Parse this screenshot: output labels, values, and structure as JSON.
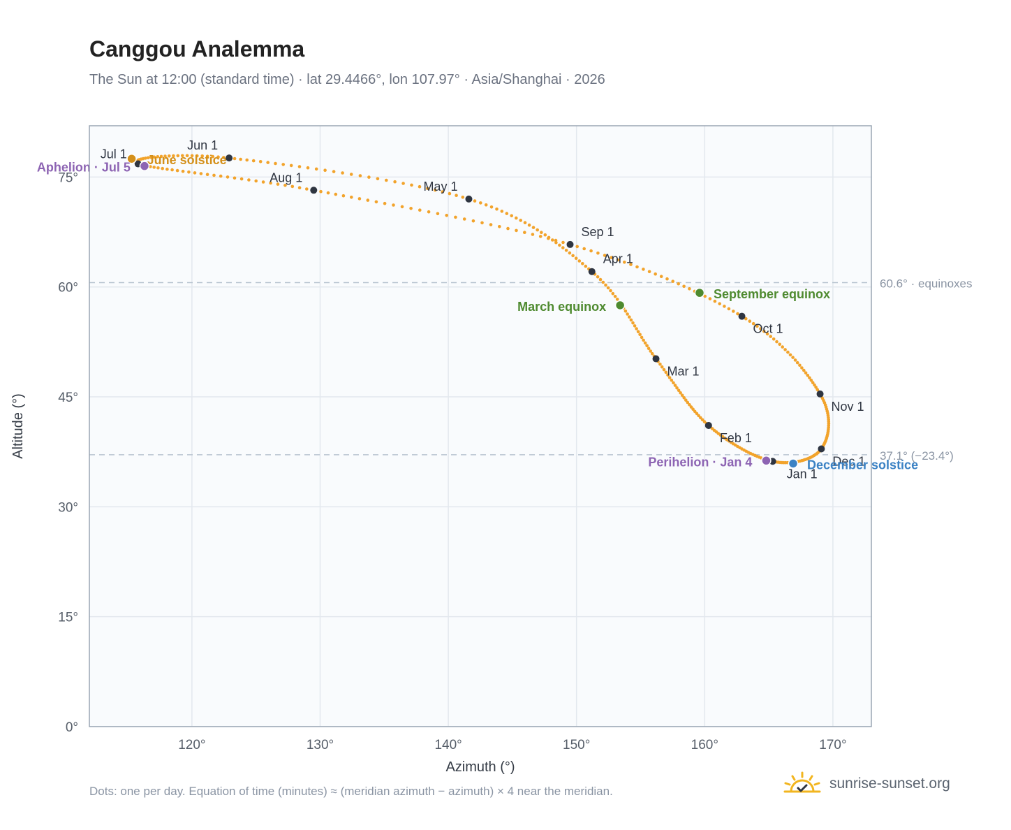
{
  "header": {
    "title": "Canggou Analemma",
    "subtitle": "The Sun at 12:00 (standard time) · lat 29.4466°, lon 107.97° · Asia/Shanghai · 2026"
  },
  "footer": {
    "note": "Dots: one per day. Equation of time (minutes) ≈ (meridian azimuth − azimuth) × 4 near the meridian.",
    "brand": "sunrise-sunset.org"
  },
  "colors": {
    "curve": "#f2a32b",
    "month_dot": "#2f3541",
    "solstice_june": "#d4901a",
    "solstice_december": "#3b82c4",
    "equinox": "#4e8a2f",
    "apsis": "#8d64b3",
    "plot_bg": "#f9fbfd",
    "grid": "#e3e8ee",
    "reference_line": "#b8c4d0"
  },
  "chart_data": {
    "type": "scatter",
    "xlabel": "Azimuth (°)",
    "ylabel": "Altitude (°)",
    "xlim": [
      112,
      173
    ],
    "ylim": [
      0,
      82
    ],
    "x_ticks": [
      120,
      130,
      140,
      150,
      160,
      170
    ],
    "x_tick_labels": [
      "120°",
      "130°",
      "140°",
      "150°",
      "160°",
      "170°"
    ],
    "y_ticks": [
      0,
      15,
      30,
      45,
      60,
      75
    ],
    "y_tick_labels": [
      "0°",
      "15°",
      "30°",
      "45°",
      "60°",
      "75°"
    ],
    "grid": true,
    "reference_lines": [
      {
        "y": 60.6,
        "label": "60.6° · equinoxes"
      },
      {
        "y": 37.1,
        "label": "37.1° (−23.4°)"
      }
    ],
    "month_points": [
      {
        "label": "Jan 1",
        "x": 165.3,
        "y": 36.2
      },
      {
        "label": "Feb 1",
        "x": 160.3,
        "y": 41.1
      },
      {
        "label": "Mar 1",
        "x": 156.2,
        "y": 50.2
      },
      {
        "label": "Apr 1",
        "x": 151.2,
        "y": 62.1
      },
      {
        "label": "May 1",
        "x": 141.6,
        "y": 72.0
      },
      {
        "label": "Jun 1",
        "x": 122.9,
        "y": 77.6
      },
      {
        "label": "Jul 1",
        "x": 115.8,
        "y": 76.8
      },
      {
        "label": "Aug 1",
        "x": 129.5,
        "y": 73.2
      },
      {
        "label": "Sep 1",
        "x": 149.5,
        "y": 65.8
      },
      {
        "label": "Oct 1",
        "x": 162.9,
        "y": 56.0
      },
      {
        "label": "Nov 1",
        "x": 169.0,
        "y": 45.4
      },
      {
        "label": "Dec 1",
        "x": 169.1,
        "y": 37.9
      }
    ],
    "events": [
      {
        "label": "June solstice",
        "x": 115.3,
        "y": 77.5,
        "kind": "solstice_june"
      },
      {
        "label": "December solstice",
        "x": 166.9,
        "y": 35.9,
        "kind": "solstice_december"
      },
      {
        "label": "March equinox",
        "x": 153.4,
        "y": 57.5,
        "kind": "equinox"
      },
      {
        "label": "September equinox",
        "x": 159.6,
        "y": 59.2,
        "kind": "equinox"
      },
      {
        "label": "Aphelion · Jul 5",
        "x": 116.3,
        "y": 76.5,
        "kind": "apsis"
      },
      {
        "label": "Perihelion · Jan 4",
        "x": 164.8,
        "y": 36.3,
        "kind": "apsis"
      }
    ]
  }
}
